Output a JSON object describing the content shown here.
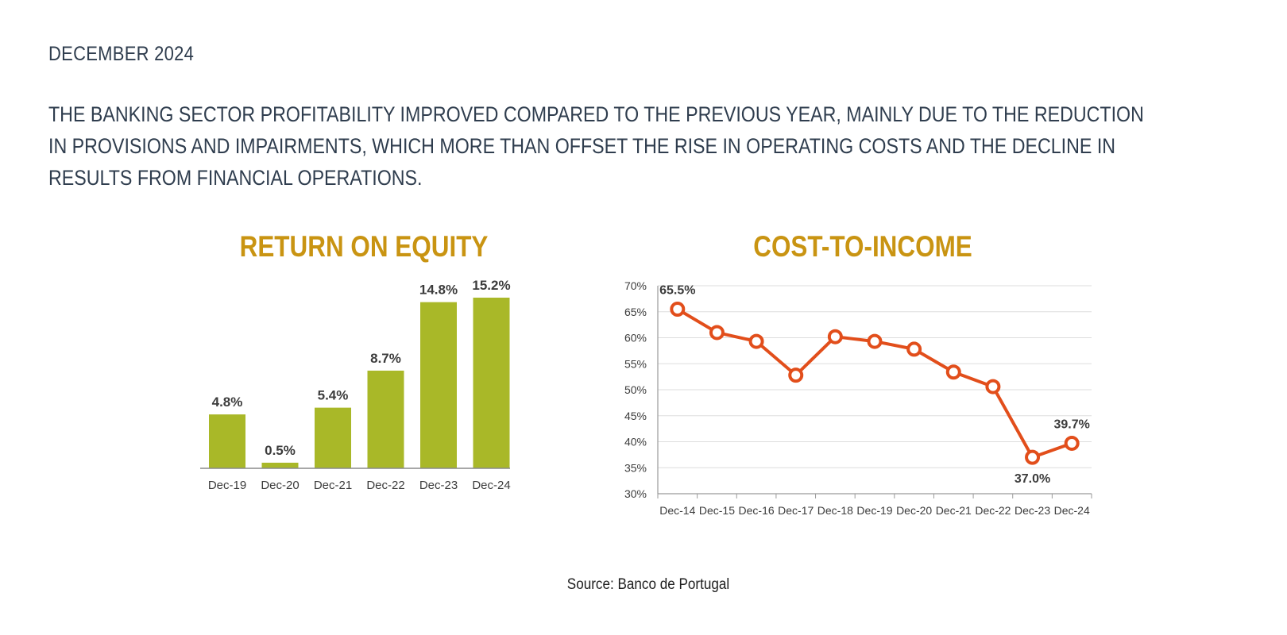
{
  "header": {
    "date": "DECEMBER 2024",
    "headline_lines": [
      "THE BANKING SECTOR PROFITABILITY IMPROVED COMPARED TO THE PREVIOUS YEAR, MAINLY DUE TO THE REDUCTION",
      "IN PROVISIONS AND IMPAIRMENTS, WHICH MORE THAN OFFSET THE RISE IN OPERATING COSTS AND THE DECLINE IN",
      "RESULTS FROM FINANCIAL OPERATIONS."
    ]
  },
  "source": "Source: Banco de Portugal",
  "colors": {
    "title": "#c99412",
    "bar": "#a9b828",
    "line": "#e24e1b",
    "text": "#2f3d4e"
  },
  "chart_data": [
    {
      "type": "bar",
      "title": "RETURN ON EQUITY",
      "categories": [
        "Dec-19",
        "Dec-20",
        "Dec-21",
        "Dec-22",
        "Dec-23",
        "Dec-24"
      ],
      "values": [
        4.8,
        0.5,
        5.4,
        8.7,
        14.8,
        15.2
      ],
      "labels": [
        "4.8%",
        "0.5%",
        "5.4%",
        "8.7%",
        "14.8%",
        "15.2%"
      ],
      "xlabel": "",
      "ylabel": "",
      "ylim": [
        0,
        16
      ],
      "grid": false
    },
    {
      "type": "line",
      "title": "COST-TO-INCOME",
      "categories": [
        "Dec-14",
        "Dec-15",
        "Dec-16",
        "Dec-17",
        "Dec-18",
        "Dec-19",
        "Dec-20",
        "Dec-21",
        "Dec-22",
        "Dec-23",
        "Dec-24"
      ],
      "values": [
        65.5,
        61.0,
        59.3,
        52.8,
        60.2,
        59.3,
        57.8,
        53.4,
        50.6,
        37.0,
        39.7
      ],
      "point_labels": [
        {
          "index": 0,
          "text": "65.5%"
        },
        {
          "index": 9,
          "text": "37.0%"
        },
        {
          "index": 10,
          "text": "39.7%"
        }
      ],
      "yticks": [
        "30%",
        "35%",
        "40%",
        "45%",
        "50%",
        "55%",
        "60%",
        "65%",
        "70%"
      ],
      "xlabel": "",
      "ylabel": "",
      "ylim": [
        30,
        70
      ],
      "grid": true
    }
  ]
}
